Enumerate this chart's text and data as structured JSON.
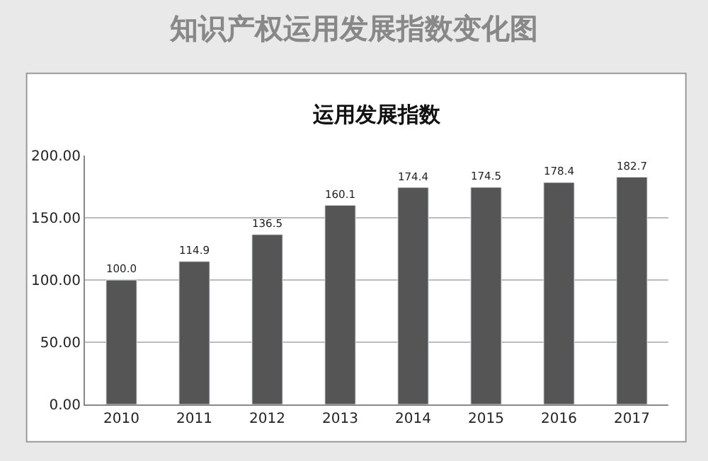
{
  "chart_data": {
    "type": "bar",
    "title": "知识产权运用发展指数变化图",
    "subtitle": "运用发展指数",
    "categories": [
      "2010",
      "2011",
      "2012",
      "2013",
      "2014",
      "2015",
      "2016",
      "2017"
    ],
    "values": [
      100.0,
      114.9,
      136.5,
      160.1,
      174.4,
      174.5,
      178.4,
      182.7
    ],
    "value_labels": [
      "100.0",
      "114.9",
      "136.5",
      "160.1",
      "174.4",
      "174.5",
      "178.4",
      "182.7"
    ],
    "color": "#555555",
    "ylim": [
      0,
      200
    ],
    "yticks": [
      {
        "value": 0,
        "label": "0.00"
      },
      {
        "value": 50,
        "label": "50.00"
      },
      {
        "value": 100,
        "label": "100.00"
      },
      {
        "value": 150,
        "label": "150.00"
      },
      {
        "value": 200,
        "label": "200.00"
      }
    ],
    "grid": "y",
    "legend": false
  }
}
